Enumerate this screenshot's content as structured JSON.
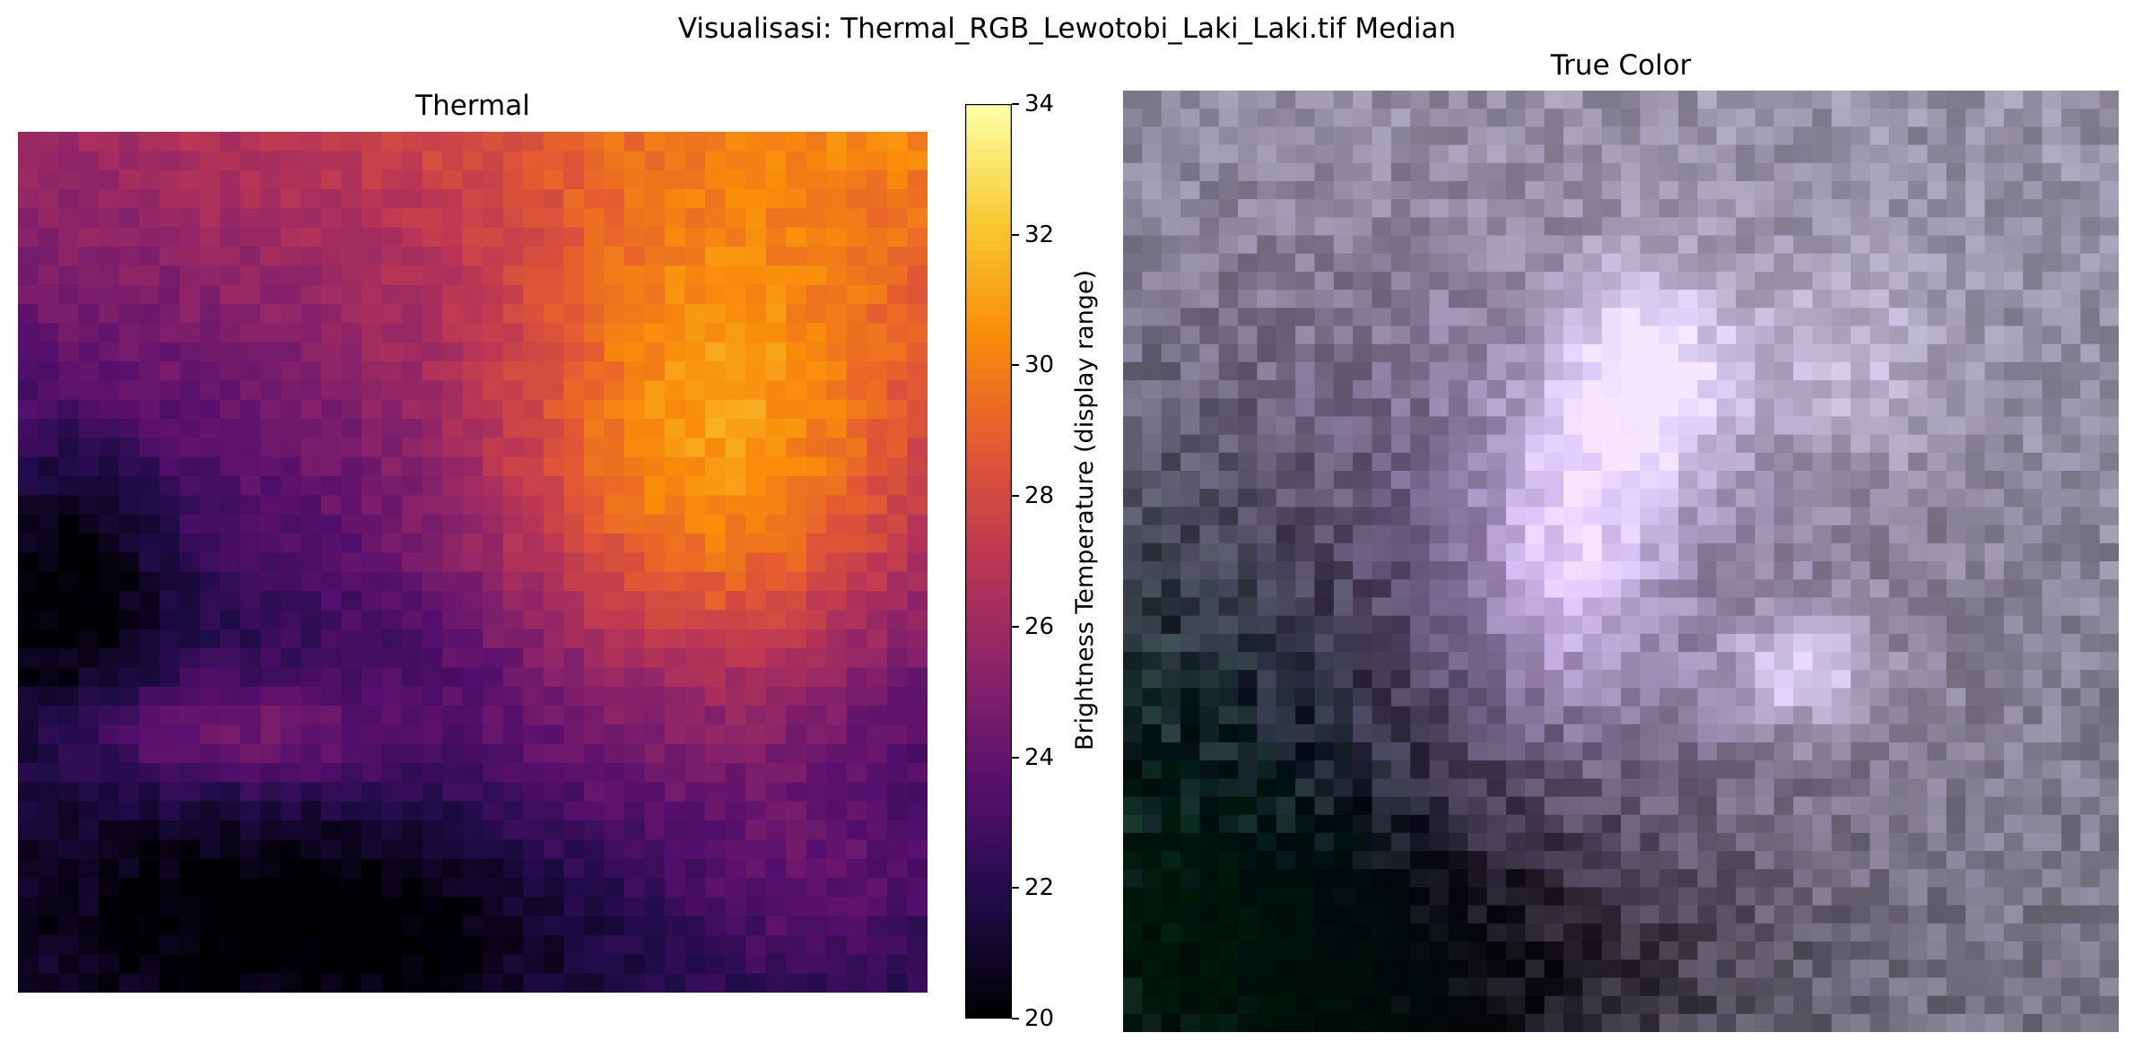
{
  "figure": {
    "suptitle": "Visualisasi: Thermal_RGB_Lewotobi_Laki_Laki.tif Median"
  },
  "panels": {
    "thermal": {
      "title": "Thermal"
    },
    "truecolor": {
      "title": "True Color"
    }
  },
  "colorbar": {
    "label": "Brightness Temperature (display range)",
    "colormap": "inferno",
    "range": [
      20,
      34
    ],
    "ticks": [
      "20",
      "22",
      "24",
      "26",
      "28",
      "30",
      "32",
      "34"
    ]
  },
  "chart_data": [
    {
      "type": "heatmap",
      "title": "Thermal",
      "colormap": "inferno",
      "value_range": [
        20,
        34
      ],
      "axes": "off",
      "grid_size": [
        45,
        45
      ],
      "description_of_pattern": {
        "hot_region": "upper-right center, peak about 34",
        "warm_band": "top edge about 30-32",
        "cool_region": "lower-left and bottom, about 20-22",
        "mid_patch": "left-middle cluster about 25-27"
      }
    },
    {
      "type": "heatmap",
      "title": "True Color",
      "colormap": "rgb",
      "axes": "off",
      "grid_size": [
        52,
        52
      ]
    }
  ]
}
